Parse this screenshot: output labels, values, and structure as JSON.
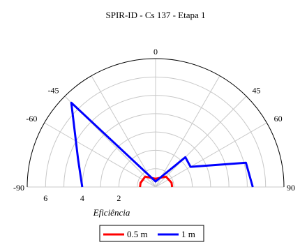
{
  "chart_data": {
    "type": "polar-line",
    "title": "SPIR-ID - Cs 137 - Etapa 1",
    "xlabel": "Eficiência",
    "radial_range": [
      0,
      7
    ],
    "radial_ticks": [
      2,
      4,
      6
    ],
    "radial_tick_labels": [
      "2",
      "4",
      "6"
    ],
    "angle_range": [
      -90,
      90
    ],
    "angle_ticks": [
      -90,
      -60,
      -45,
      0,
      45,
      60,
      90
    ],
    "angle_tick_labels": [
      "-90",
      "-60",
      "-45",
      "0",
      "45",
      "60",
      "90"
    ],
    "grid": true,
    "legend_position": "bottom-center",
    "series": [
      {
        "name": "0.5 m",
        "color": "#ff0000",
        "points": [
          [
            -90,
            0.85
          ],
          [
            -75,
            0.85
          ],
          [
            -45,
            0.8
          ],
          [
            0,
            0.45
          ],
          [
            45,
            0.8
          ],
          [
            75,
            0.9
          ],
          [
            90,
            0.9
          ]
        ]
      },
      {
        "name": "1 m",
        "color": "#0000ff",
        "points": [
          [
            -90,
            4.0
          ],
          [
            -70,
            4.5
          ],
          [
            -45,
            6.5
          ],
          [
            0,
            0.3
          ],
          [
            45,
            2.3
          ],
          [
            60,
            2.2
          ],
          [
            75,
            5.1
          ],
          [
            90,
            5.3
          ]
        ]
      }
    ]
  }
}
